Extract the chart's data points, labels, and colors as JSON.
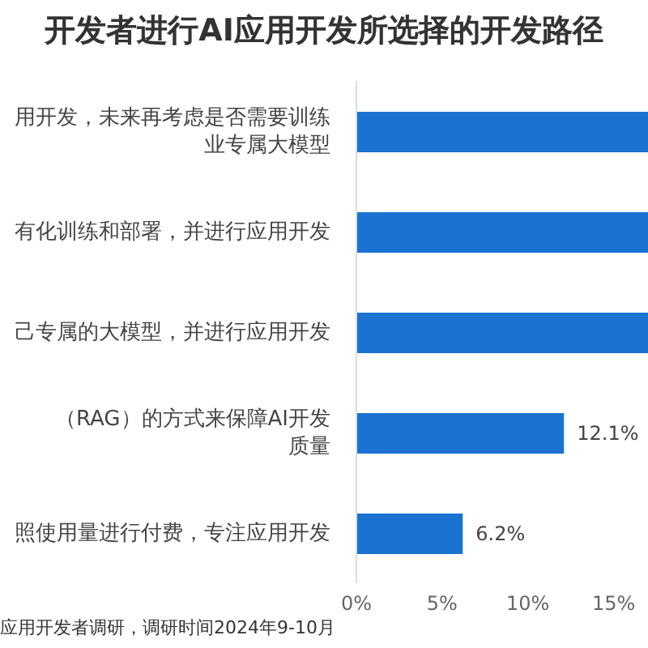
{
  "chart_data": {
    "type": "bar",
    "orientation": "horizontal",
    "title": "开发者进行AI应用开发所选择的开发路径",
    "categories": [
      "用开发，未来再考虑是否需要训练业专属大模型",
      "有化训练和部署，并进行应用开发",
      "己专属的大模型，并进行应用开发",
      "（RAG）的方式来保障AI开发质量",
      "照使用量进行付费，专注应用开发"
    ],
    "values": [
      17,
      17,
      17,
      12.1,
      6.2
    ],
    "value_labels": [
      null,
      null,
      null,
      "12.1%",
      "6.2%"
    ],
    "color": "#1a73d1",
    "xlim": [
      0,
      17
    ],
    "xticks": [
      {
        "value": 0,
        "label": "0%"
      },
      {
        "value": 5,
        "label": "5%"
      },
      {
        "value": 10,
        "label": "10%"
      },
      {
        "value": 15,
        "label": "15%"
      }
    ],
    "annotations": [
      "应用开发者调研，调研时间2024年9-10月"
    ]
  }
}
